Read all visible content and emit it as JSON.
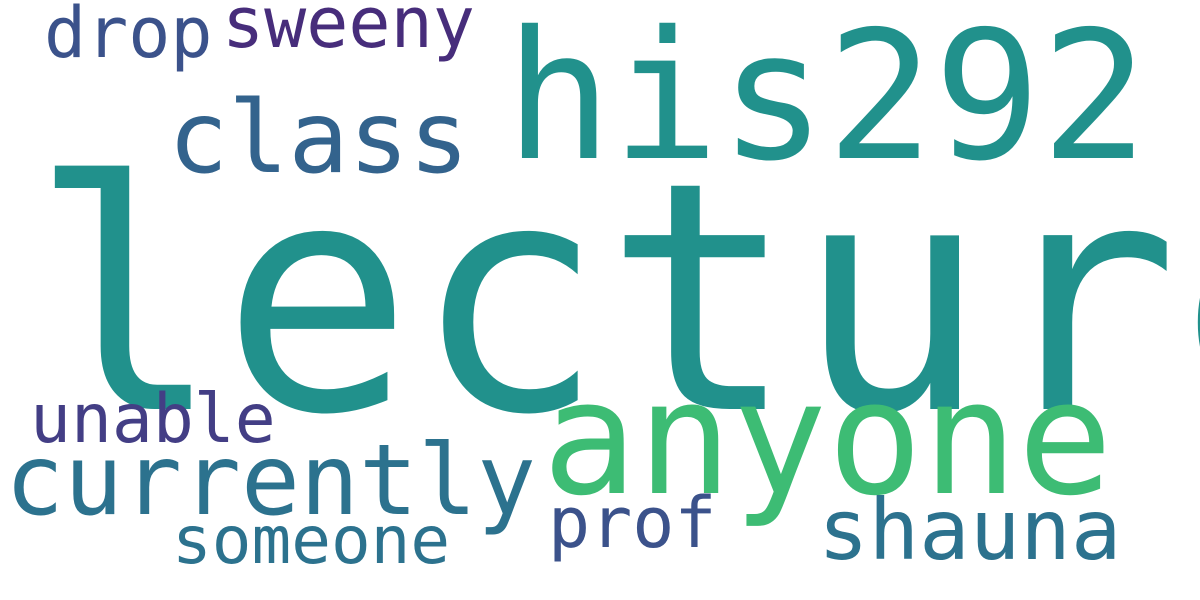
{
  "words": {
    "lecture": {
      "text": "lecture",
      "color": "#21918c"
    },
    "his292": {
      "text": "his292",
      "color": "#21918c"
    },
    "anyone": {
      "text": "anyone",
      "color": "#3dbc74"
    },
    "class": {
      "text": "class",
      "color": "#33638d"
    },
    "currently": {
      "text": "currently",
      "color": "#2c728e"
    },
    "shauna": {
      "text": "shauna",
      "color": "#2c728e"
    },
    "sweeny": {
      "text": "sweeny",
      "color": "#472d7b"
    },
    "drop": {
      "text": "drop",
      "color": "#3b528b"
    },
    "unable": {
      "text": "unable",
      "color": "#433e85"
    },
    "someone": {
      "text": "someone",
      "color": "#2c728e"
    },
    "prof": {
      "text": "prof",
      "color": "#3b528b"
    }
  }
}
